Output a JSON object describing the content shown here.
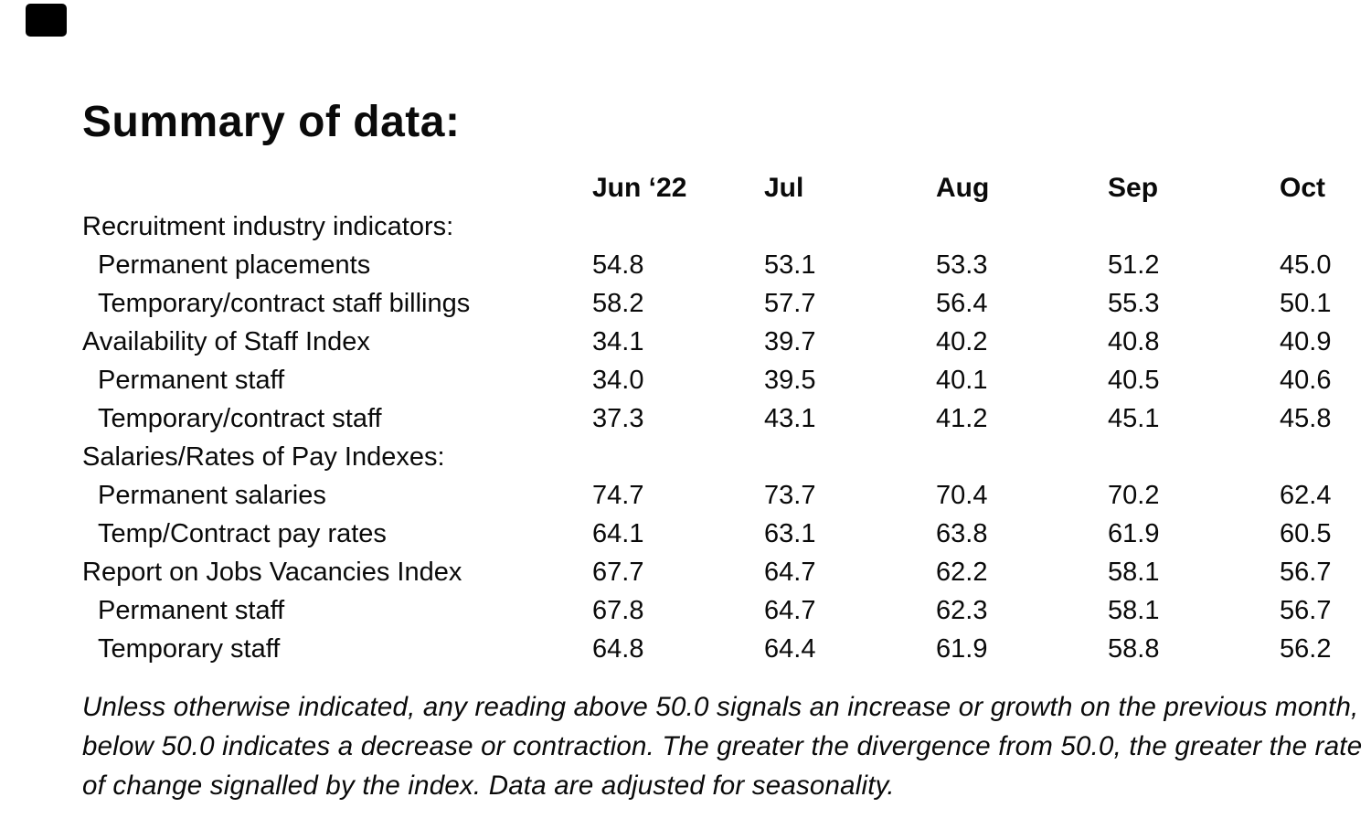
{
  "page": {
    "background": "#ffffff",
    "text_color": "#0a0a0a"
  },
  "title": "Summary of data:",
  "table": {
    "columns": [
      "Jun ‘22",
      "Jul",
      "Aug",
      "Sep",
      "Oct"
    ],
    "rows": [
      {
        "label": "Recruitment industry indicators:",
        "indent": 0,
        "values": [
          "",
          "",
          "",
          "",
          ""
        ]
      },
      {
        "label": "Permanent placements",
        "indent": 1,
        "values": [
          "54.8",
          "53.1",
          "53.3",
          "51.2",
          "45.0"
        ]
      },
      {
        "label": "Temporary/contract staff billings",
        "indent": 1,
        "values": [
          "58.2",
          "57.7",
          "56.4",
          "55.3",
          "50.1"
        ]
      },
      {
        "label": "Availability of Staff Index",
        "indent": 0,
        "values": [
          "34.1",
          "39.7",
          "40.2",
          "40.8",
          "40.9"
        ]
      },
      {
        "label": "Permanent staff",
        "indent": 1,
        "values": [
          "34.0",
          "39.5",
          "40.1",
          "40.5",
          "40.6"
        ]
      },
      {
        "label": "Temporary/contract staff",
        "indent": 1,
        "values": [
          "37.3",
          "43.1",
          "41.2",
          "45.1",
          "45.8"
        ]
      },
      {
        "label": "Salaries/Rates of Pay Indexes:",
        "indent": 0,
        "values": [
          "",
          "",
          "",
          "",
          ""
        ]
      },
      {
        "label": "Permanent salaries",
        "indent": 1,
        "values": [
          "74.7",
          "73.7",
          "70.4",
          "70.2",
          "62.4"
        ]
      },
      {
        "label": "Temp/Contract pay rates",
        "indent": 1,
        "values": [
          "64.1",
          "63.1",
          "63.8",
          "61.9",
          "60.5"
        ]
      },
      {
        "label": "Report on Jobs Vacancies Index",
        "indent": 0,
        "values": [
          "67.7",
          "64.7",
          "62.2",
          "58.1",
          "56.7"
        ]
      },
      {
        "label": "Permanent staff",
        "indent": 1,
        "values": [
          "67.8",
          "64.7",
          "62.3",
          "58.1",
          "56.7"
        ]
      },
      {
        "label": "Temporary staff",
        "indent": 1,
        "values": [
          "64.8",
          "64.4",
          "61.9",
          "58.8",
          "56.2"
        ]
      }
    ]
  },
  "footnote": {
    "lines": [
      "Unless otherwise indicated, any reading above 50.0 signals an increase or growth on the previous month,",
      "below 50.0 indicates a decrease or contraction. The greater the divergence from 50.0, the greater the rate",
      "of change signalled by the index. Data are adjusted for seasonality."
    ]
  }
}
